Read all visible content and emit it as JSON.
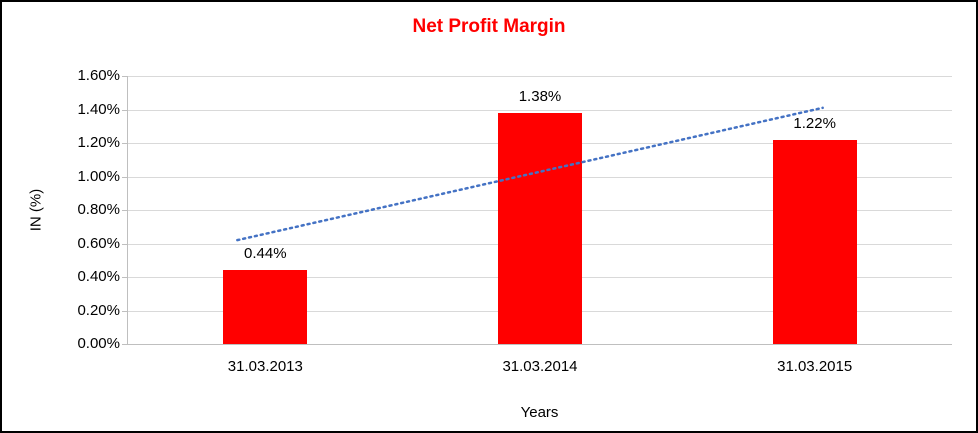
{
  "chart_data": {
    "type": "bar",
    "title": "Net Profit Margin",
    "categories": [
      "31.03.2013",
      "31.03.2014",
      "31.03.2015"
    ],
    "values": [
      0.44,
      1.38,
      1.22
    ],
    "value_labels": [
      "0.44%",
      "1.38%",
      "1.22%"
    ],
    "xlabel": "Years",
    "ylabel": "IN (%)",
    "ylim": [
      0,
      1.6
    ],
    "ytick_values": [
      0,
      0.2,
      0.4,
      0.6,
      0.8,
      1.0,
      1.2,
      1.4,
      1.6
    ],
    "ytick_labels": [
      "0.00%",
      "0.20%",
      "0.40%",
      "0.60%",
      "0.80%",
      "1.00%",
      "1.20%",
      "1.40%",
      "1.60%"
    ],
    "grid": true,
    "legend": false,
    "colors": {
      "bar": "#FF0000",
      "title": "#FF0000",
      "gridline": "#D9D9D9",
      "axis": "#BFBFBF",
      "trendline": "#4472C4"
    },
    "trendline": {
      "type": "linear",
      "style": "dotted",
      "start_value": 0.62,
      "end_value": 1.41
    }
  }
}
